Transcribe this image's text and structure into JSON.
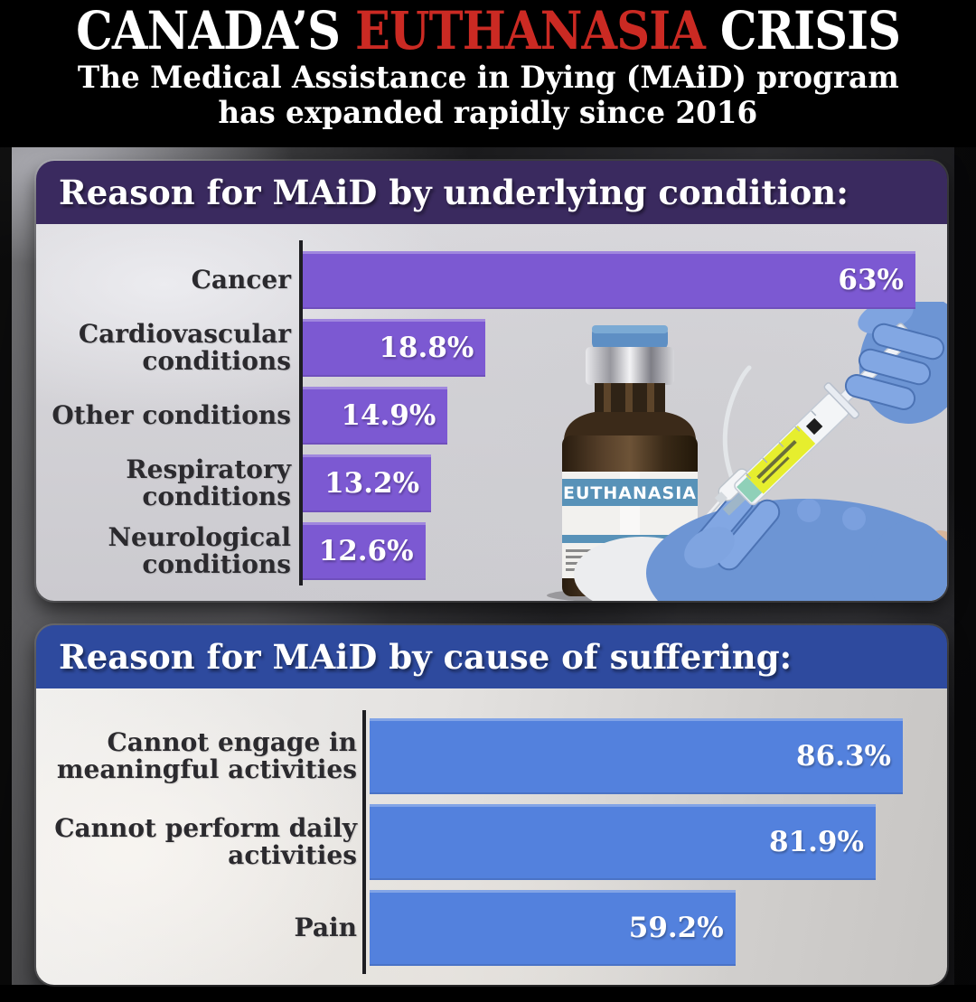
{
  "title": {
    "prefix": "CANADA’S",
    "highlight": "EUTHANASIA",
    "suffix": "CRISIS"
  },
  "subtitle": {
    "line1": "The Medical Assistance in Dying (MAiD) program",
    "line2": "has expanded rapidly since 2016"
  },
  "colors": {
    "title_highlight": "#cb2a23",
    "panel1_header_bg": "#3a2a5f",
    "panel1_bar": "#7c59d2",
    "panel2_header_bg": "#2e4a9e",
    "panel2_bar": "#5381dd",
    "category_label": "#2b2a2e",
    "axis": "#1e1e22"
  },
  "photo": {
    "vial_label": "EUTHANASIA"
  },
  "chart_data": [
    {
      "type": "bar",
      "orientation": "horizontal",
      "title": "Reason for MAiD by underlying condition:",
      "categories": [
        "Cancer",
        "Cardiovascular conditions",
        "Other conditions",
        "Respiratory conditions",
        "Neurological conditions"
      ],
      "values": [
        63,
        18.8,
        14.9,
        13.2,
        12.6
      ],
      "value_labels": [
        "63%",
        "18.8%",
        "14.9%",
        "13.2%",
        "12.6%"
      ],
      "value_label_position": "inside-right",
      "bar_color": "#7c59d2",
      "header_bg": "#3a2a5f",
      "xlim": [
        0,
        63
      ],
      "grid": false,
      "legend": false
    },
    {
      "type": "bar",
      "orientation": "horizontal",
      "title": "Reason for MAiD by cause of suffering:",
      "categories": [
        "Cannot engage in meaningful activities",
        "Cannot perform daily activities",
        "Pain"
      ],
      "values": [
        86.3,
        81.9,
        59.2
      ],
      "value_labels": [
        "86.3%",
        "81.9%",
        "59.2%"
      ],
      "value_label_position": "inside-right",
      "bar_color": "#5381dd",
      "header_bg": "#2e4a9e",
      "xlim": [
        0,
        86.3
      ],
      "grid": false,
      "legend": false
    }
  ]
}
